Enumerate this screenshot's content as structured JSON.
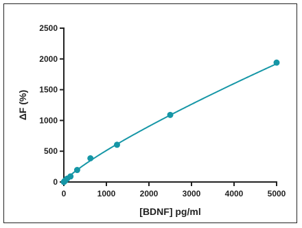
{
  "chart_data": {
    "type": "scatter",
    "title": "",
    "xlabel": "[BDNF] pg/ml",
    "ylabel": "ΔF (%)",
    "xlim": [
      0,
      5000
    ],
    "ylim": [
      0,
      2500
    ],
    "x_ticks": [
      "0",
      "1000",
      "2000",
      "3000",
      "4000",
      "5000"
    ],
    "y_ticks": [
      "0",
      "500",
      "1000",
      "1500",
      "2000",
      "2500"
    ],
    "grid": false,
    "legend": "none",
    "series": [
      {
        "points": [
          {
            "x": 0,
            "y": 0
          },
          {
            "x": 10,
            "y": 8
          },
          {
            "x": 20,
            "y": 15
          },
          {
            "x": 39,
            "y": 28
          },
          {
            "x": 78,
            "y": 55
          },
          {
            "x": 156,
            "y": 90
          },
          {
            "x": 313,
            "y": 195
          },
          {
            "x": 625,
            "y": 385
          },
          {
            "x": 1250,
            "y": 605
          },
          {
            "x": 2500,
            "y": 1090
          },
          {
            "x": 5000,
            "y": 1940
          }
        ],
        "fit_curve": {
          "type": "power",
          "a": 1.75,
          "b": 0.822
        },
        "color": "#1596a6"
      }
    ]
  }
}
